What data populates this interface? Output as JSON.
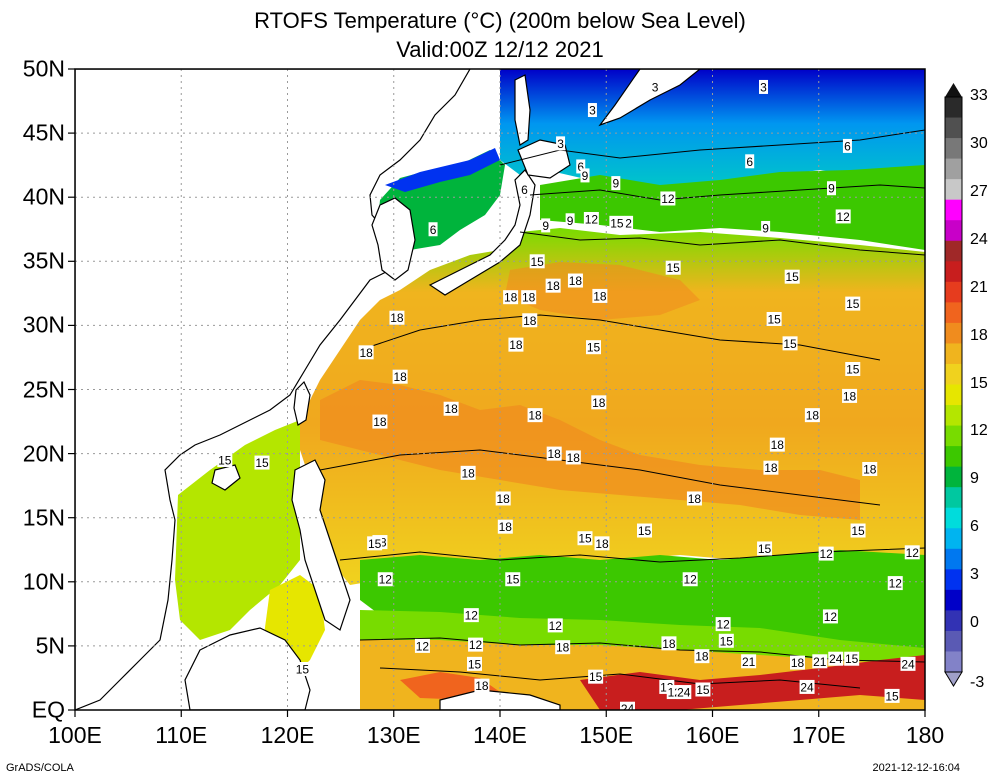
{
  "title_line1": "RTOFS Temperature (°C) (200m below Sea Level)",
  "title_line2": "Valid:00Z 12/12 2021",
  "lat_labels": [
    "EQ",
    "5N",
    "10N",
    "15N",
    "20N",
    "25N",
    "30N",
    "35N",
    "40N",
    "45N",
    "50N"
  ],
  "lon_labels": [
    "100E",
    "110E",
    "120E",
    "130E",
    "140E",
    "150E",
    "160E",
    "170E",
    "180"
  ],
  "lat_values": [
    0,
    5,
    10,
    15,
    20,
    25,
    30,
    35,
    40,
    45,
    50
  ],
  "lon_values": [
    100,
    110,
    120,
    130,
    140,
    150,
    160,
    170,
    180
  ],
  "extent": {
    "lon_min": 100,
    "lon_max": 180,
    "lat_min": 0,
    "lat_max": 50
  },
  "colorbar": {
    "labels": [
      "33",
      "30",
      "27",
      "24",
      "21",
      "18",
      "15",
      "12",
      "9",
      "6",
      "3",
      "0",
      "-3"
    ],
    "colors": [
      "#2a2a2a",
      "#505050",
      "#787878",
      "#a0a0a0",
      "#c8c8c8",
      "#ff00ff",
      "#c800c8",
      "#a02828",
      "#c81e1e",
      "#e63c1e",
      "#f0641e",
      "#f08c1e",
      "#f0b41e",
      "#f0d21e",
      "#e6e600",
      "#b4e600",
      "#78dc00",
      "#3cc800",
      "#00b43c",
      "#00c8a0",
      "#00dcdc",
      "#00b4f0",
      "#0078f0",
      "#0032f0",
      "#0000c8",
      "#3232b4",
      "#5a5ab4",
      "#8282c8"
    ]
  },
  "contour_labels": [
    {
      "text": "3",
      "lon": 154.6,
      "lat": 48.6
    },
    {
      "text": "3",
      "lon": 164.8,
      "lat": 48.6
    },
    {
      "text": "3",
      "lon": 148.7,
      "lat": 46.8
    },
    {
      "text": "3",
      "lon": 145.7,
      "lat": 44.2
    },
    {
      "text": "6",
      "lon": 163.5,
      "lat": 42.8
    },
    {
      "text": "6",
      "lon": 172.7,
      "lat": 44.0
    },
    {
      "text": "6",
      "lon": 147.6,
      "lat": 42.4
    },
    {
      "text": "6",
      "lon": 142.3,
      "lat": 40.6
    },
    {
      "text": "6",
      "lon": 133.7,
      "lat": 37.5
    },
    {
      "text": "9",
      "lon": 148.0,
      "lat": 41.7
    },
    {
      "text": "9",
      "lon": 150.9,
      "lat": 41.1
    },
    {
      "text": "9",
      "lon": 171.2,
      "lat": 40.7
    },
    {
      "text": "9",
      "lon": 144.3,
      "lat": 37.8
    },
    {
      "text": "9",
      "lon": 146.6,
      "lat": 38.2
    },
    {
      "text": "9",
      "lon": 165.0,
      "lat": 37.6
    },
    {
      "text": "12",
      "lon": 155.8,
      "lat": 39.9
    },
    {
      "text": "12",
      "lon": 172.3,
      "lat": 38.5
    },
    {
      "text": "12",
      "lon": 148.6,
      "lat": 38.3
    },
    {
      "text": "15",
      "lon": 151.0,
      "lat": 38.0
    },
    {
      "text": "2",
      "lon": 152.1,
      "lat": 38.0
    },
    {
      "text": "15",
      "lon": 143.5,
      "lat": 35.0
    },
    {
      "text": "15",
      "lon": 156.3,
      "lat": 34.5
    },
    {
      "text": "15",
      "lon": 167.5,
      "lat": 33.8
    },
    {
      "text": "15",
      "lon": 173.2,
      "lat": 31.7
    },
    {
      "text": "18",
      "lon": 141.0,
      "lat": 32.2
    },
    {
      "text": "18",
      "lon": 142.7,
      "lat": 32.2
    },
    {
      "text": "18",
      "lon": 145.0,
      "lat": 33.1
    },
    {
      "text": "18",
      "lon": 147.1,
      "lat": 33.5
    },
    {
      "text": "18",
      "lon": 149.4,
      "lat": 32.3
    },
    {
      "text": "18",
      "lon": 130.3,
      "lat": 30.6
    },
    {
      "text": "18",
      "lon": 142.8,
      "lat": 30.4
    },
    {
      "text": "15",
      "lon": 165.8,
      "lat": 30.5
    },
    {
      "text": "18",
      "lon": 141.5,
      "lat": 28.5
    },
    {
      "text": "15",
      "lon": 148.8,
      "lat": 28.3
    },
    {
      "text": "15",
      "lon": 167.3,
      "lat": 28.6
    },
    {
      "text": "18",
      "lon": 127.4,
      "lat": 27.9
    },
    {
      "text": "18",
      "lon": 130.6,
      "lat": 26.0
    },
    {
      "text": "15",
      "lon": 173.2,
      "lat": 26.6
    },
    {
      "text": "18",
      "lon": 172.9,
      "lat": 24.5
    },
    {
      "text": "18",
      "lon": 149.3,
      "lat": 24.0
    },
    {
      "text": "18",
      "lon": 135.4,
      "lat": 23.5
    },
    {
      "text": "18",
      "lon": 143.3,
      "lat": 23.0
    },
    {
      "text": "18",
      "lon": 169.4,
      "lat": 23.0
    },
    {
      "text": "18",
      "lon": 128.7,
      "lat": 22.5
    },
    {
      "text": "18",
      "lon": 166.1,
      "lat": 20.7
    },
    {
      "text": "18",
      "lon": 145.1,
      "lat": 20.0
    },
    {
      "text": "18",
      "lon": 146.9,
      "lat": 19.7
    },
    {
      "text": "18",
      "lon": 137.0,
      "lat": 18.5
    },
    {
      "text": "18",
      "lon": 165.5,
      "lat": 18.9
    },
    {
      "text": "18",
      "lon": 174.8,
      "lat": 18.8
    },
    {
      "text": "15",
      "lon": 114.1,
      "lat": 19.5
    },
    {
      "text": "15",
      "lon": 117.6,
      "lat": 19.3
    },
    {
      "text": "18",
      "lon": 140.3,
      "lat": 16.5
    },
    {
      "text": "18",
      "lon": 158.3,
      "lat": 16.5
    },
    {
      "text": "15",
      "lon": 173.7,
      "lat": 14.0
    },
    {
      "text": "18",
      "lon": 140.5,
      "lat": 14.3
    },
    {
      "text": "18",
      "lon": 128.7,
      "lat": 13.1
    },
    {
      "text": "15",
      "lon": 128.2,
      "lat": 13.0
    },
    {
      "text": "18",
      "lon": 149.6,
      "lat": 13.0
    },
    {
      "text": "15",
      "lon": 148.0,
      "lat": 13.4
    },
    {
      "text": "15",
      "lon": 153.6,
      "lat": 14.0
    },
    {
      "text": "15",
      "lon": 164.9,
      "lat": 12.6
    },
    {
      "text": "12",
      "lon": 170.7,
      "lat": 12.2
    },
    {
      "text": "12",
      "lon": 178.8,
      "lat": 12.3
    },
    {
      "text": "12",
      "lon": 129.2,
      "lat": 10.2
    },
    {
      "text": "15",
      "lon": 141.2,
      "lat": 10.2
    },
    {
      "text": "12",
      "lon": 157.9,
      "lat": 10.2
    },
    {
      "text": "12",
      "lon": 177.2,
      "lat": 9.9
    },
    {
      "text": "12",
      "lon": 137.3,
      "lat": 7.4
    },
    {
      "text": "12",
      "lon": 145.2,
      "lat": 6.6
    },
    {
      "text": "12",
      "lon": 161.0,
      "lat": 6.7
    },
    {
      "text": "12",
      "lon": 171.1,
      "lat": 7.3
    },
    {
      "text": "12",
      "lon": 132.7,
      "lat": 5.0
    },
    {
      "text": "12",
      "lon": 137.7,
      "lat": 5.1
    },
    {
      "text": "18",
      "lon": 145.9,
      "lat": 4.9
    },
    {
      "text": "18",
      "lon": 155.9,
      "lat": 5.2
    },
    {
      "text": "15",
      "lon": 161.3,
      "lat": 5.4
    },
    {
      "text": "18",
      "lon": 159.0,
      "lat": 4.2
    },
    {
      "text": "15",
      "lon": 137.6,
      "lat": 3.6
    },
    {
      "text": "21",
      "lon": 163.4,
      "lat": 3.8
    },
    {
      "text": "18",
      "lon": 168.0,
      "lat": 3.7
    },
    {
      "text": "21",
      "lon": 170.1,
      "lat": 3.8
    },
    {
      "text": "24",
      "lon": 171.6,
      "lat": 4.0
    },
    {
      "text": "15",
      "lon": 173.1,
      "lat": 4.0
    },
    {
      "text": "24",
      "lon": 178.4,
      "lat": 3.6
    },
    {
      "text": "15",
      "lon": 121.4,
      "lat": 3.2
    },
    {
      "text": "15",
      "lon": 149.0,
      "lat": 2.6
    },
    {
      "text": "18",
      "lon": 138.3,
      "lat": 1.9
    },
    {
      "text": "12",
      "lon": 155.7,
      "lat": 1.8
    },
    {
      "text": "12",
      "lon": 156.4,
      "lat": 1.4
    },
    {
      "text": "24",
      "lon": 157.3,
      "lat": 1.4
    },
    {
      "text": "15",
      "lon": 159.1,
      "lat": 1.6
    },
    {
      "text": "24",
      "lon": 168.9,
      "lat": 1.8
    },
    {
      "text": "15",
      "lon": 176.9,
      "lat": 1.1
    },
    {
      "text": "24",
      "lon": 152.0,
      "lat": 0.1
    }
  ],
  "footer_left": "GrADS/COLA",
  "footer_right": "2021-12-12-16:04"
}
